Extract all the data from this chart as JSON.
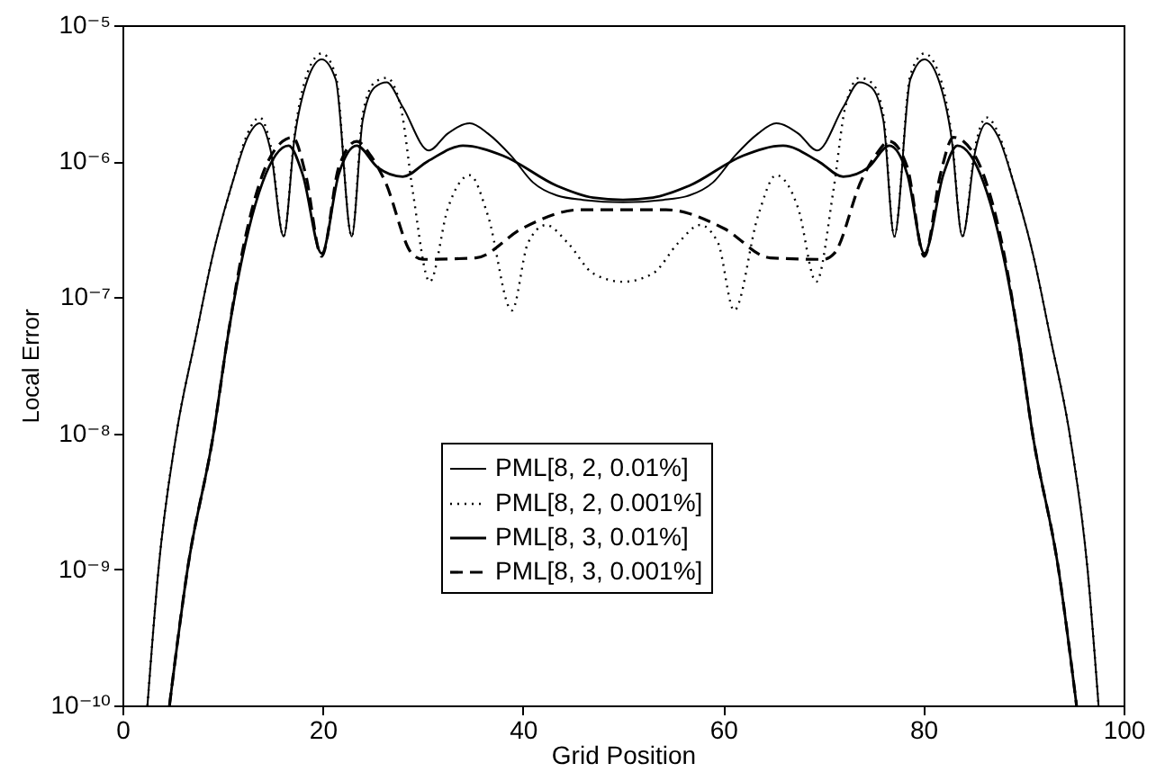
{
  "chart_data": {
    "type": "line",
    "xlabel": "Grid Position",
    "ylabel": "Local Error",
    "log": "y",
    "grid": false,
    "legend": "bottom",
    "marker": "none",
    "xlim": [
      0,
      100
    ],
    "xticks": [
      0,
      20,
      40,
      60,
      80,
      100
    ],
    "ylim": [
      1e-10,
      1e-05
    ],
    "yticks": [
      {
        "value": 1e-10,
        "label": "10⁻¹⁰"
      },
      {
        "value": 1e-09,
        "label": "10⁻⁹"
      },
      {
        "value": 1e-08,
        "label": "10⁻⁸"
      },
      {
        "value": 1e-07,
        "label": "10⁻⁷"
      },
      {
        "value": 1e-06,
        "label": "10⁻⁶"
      },
      {
        "value": 1e-05,
        "label": "10⁻⁵"
      }
    ],
    "series": [
      {
        "name": "PML[8, 2, 0.01%]",
        "color": "#000000",
        "line_style": "solid",
        "x": [
          2.5,
          3.6,
          5.4,
          7.3,
          9,
          11,
          12.5,
          13.7,
          14.8,
          16.1,
          17.2,
          18.5,
          19.9,
          21.3,
          22.9,
          24,
          25.2,
          26.4,
          28,
          30.6,
          32.5,
          34.7,
          36.5,
          38.8,
          41,
          43.4,
          46,
          50,
          54,
          56.6,
          59,
          61.2,
          63.5,
          65.3,
          67.5,
          69.4,
          72,
          73.6,
          74.8,
          76,
          77.1,
          78.7,
          80.1,
          81.5,
          82.8,
          83.9,
          85.2,
          86.3,
          87.5,
          89,
          91,
          92.7,
          94.6,
          96.4,
          97.5
        ],
        "values": [
          1e-10,
          1e-09,
          1e-08,
          5e-08,
          2e-07,
          7e-07,
          1.5e-06,
          1.9e-06,
          1.2e-06,
          2.8e-07,
          1.5e-06,
          4e-06,
          5.6e-06,
          4e-06,
          2.8e-07,
          2e-06,
          3.5e-06,
          3.8e-06,
          2.5e-06,
          1.2e-06,
          1.6e-06,
          1.9e-06,
          1.6e-06,
          1.1e-06,
          7e-07,
          5.6e-07,
          5.2e-07,
          5e-07,
          5.2e-07,
          5.6e-07,
          7e-07,
          1.1e-06,
          1.6e-06,
          1.9e-06,
          1.6e-06,
          1.2e-06,
          2.5e-06,
          3.8e-06,
          3.5e-06,
          2e-06,
          2.8e-07,
          4e-06,
          5.6e-06,
          4e-06,
          1.5e-06,
          2.8e-07,
          1.2e-06,
          1.9e-06,
          1.5e-06,
          7e-07,
          2e-07,
          5e-08,
          1e-08,
          1e-09,
          1e-10
        ]
      },
      {
        "name": "PML[8, 2, 0.001%]",
        "color": "#000000",
        "line_style": "dotted",
        "x": [
          2.5,
          3.6,
          5.4,
          7.3,
          9,
          11,
          12.5,
          13.7,
          14.8,
          16.1,
          17.2,
          18.5,
          19.9,
          21.3,
          22.9,
          24,
          25.2,
          26.4,
          27.8,
          29,
          30.7,
          32.5,
          34.7,
          36.5,
          38.9,
          40.5,
          42.3,
          44.5,
          47,
          50,
          53,
          55.5,
          57.7,
          59.5,
          61.1,
          63.5,
          65.3,
          67.5,
          69.3,
          71,
          72.2,
          73.6,
          74.8,
          76,
          77.1,
          78.7,
          80.1,
          81.5,
          82.8,
          83.9,
          85.2,
          86.3,
          87.5,
          89,
          91,
          92.7,
          94.6,
          96.4,
          97.5
        ],
        "values": [
          1e-10,
          1e-09,
          1e-08,
          5e-08,
          2e-07,
          7e-07,
          1.6e-06,
          2.1e-06,
          1.3e-06,
          2.8e-07,
          1.6e-06,
          4.5e-06,
          6.2e-06,
          4.3e-06,
          2.8e-07,
          2.2e-06,
          3.8e-06,
          4.1e-06,
          2.5e-06,
          6e-07,
          1.3e-07,
          4.5e-07,
          7.9e-07,
          4e-07,
          8e-08,
          2.5e-07,
          3.4e-07,
          2.5e-07,
          1.5e-07,
          1.3e-07,
          1.5e-07,
          2.5e-07,
          3.4e-07,
          2.5e-07,
          8e-08,
          4e-07,
          7.9e-07,
          4.5e-07,
          1.3e-07,
          6e-07,
          2.5e-06,
          4.1e-06,
          3.8e-06,
          2.2e-06,
          2.8e-07,
          4.3e-06,
          6.2e-06,
          4.5e-06,
          1.6e-06,
          2.8e-07,
          1.3e-06,
          2.1e-06,
          1.6e-06,
          7e-07,
          2e-07,
          5e-08,
          1e-08,
          1e-09,
          1e-10
        ]
      },
      {
        "name": "PML[8, 3, 0.01%]",
        "color": "#000000",
        "line_style": "solid",
        "x": [
          4.7,
          6.5,
          9.1,
          10.5,
          12,
          14,
          16.6,
          18,
          19.9,
          21.6,
          23.4,
          25.5,
          28,
          30.5,
          34,
          38,
          43.4,
          47,
          50,
          53,
          56.6,
          62,
          66,
          69.5,
          72,
          74.5,
          76.6,
          78.4,
          80.1,
          82,
          83.4,
          86,
          88,
          89.5,
          90.9,
          93.5,
          95.3
        ],
        "values": [
          1e-10,
          1e-09,
          1e-08,
          5e-08,
          2e-07,
          7e-07,
          1.3e-06,
          8e-07,
          2.1e-07,
          8e-07,
          1.3e-06,
          9e-07,
          7.7e-07,
          1e-06,
          1.3e-06,
          1.1e-06,
          6.6e-07,
          5.4e-07,
          5.2e-07,
          5.4e-07,
          6.6e-07,
          1.1e-06,
          1.3e-06,
          1e-06,
          7.7e-07,
          9e-07,
          1.3e-06,
          8e-07,
          2.1e-07,
          8e-07,
          1.3e-06,
          7e-07,
          2e-07,
          5e-08,
          1e-08,
          1e-09,
          1e-10
        ]
      },
      {
        "name": "PML[8, 3, 0.001%]",
        "color": "#000000",
        "line_style": "dashed",
        "x": [
          4.7,
          6.5,
          9.1,
          10.5,
          12,
          14,
          16,
          17,
          18.3,
          19.9,
          21.6,
          23.4,
          24.8,
          26.2,
          28.9,
          30,
          35.3,
          39.9,
          45.7,
          50,
          54.3,
          60.1,
          64.7,
          70,
          71.1,
          73.8,
          75.2,
          76.6,
          78.4,
          80.1,
          81.7,
          83,
          84,
          86,
          88,
          89.5,
          90.9,
          93.5,
          95.3
        ],
        "values": [
          1e-10,
          1e-09,
          1e-08,
          5e-08,
          2.2e-07,
          8e-07,
          1.4e-06,
          1.5e-06,
          8e-07,
          2e-07,
          9e-07,
          1.4e-06,
          1.1e-06,
          7.2e-07,
          2.1e-07,
          1.9e-07,
          1.95e-07,
          3.2e-07,
          4.4e-07,
          4.4e-07,
          4.4e-07,
          3.2e-07,
          1.95e-07,
          1.9e-07,
          2.1e-07,
          7.2e-07,
          1.1e-06,
          1.4e-06,
          9e-07,
          2e-07,
          8e-07,
          1.5e-06,
          1.4e-06,
          8e-07,
          2.2e-07,
          5e-08,
          1e-08,
          1e-09,
          1e-10
        ]
      }
    ]
  }
}
